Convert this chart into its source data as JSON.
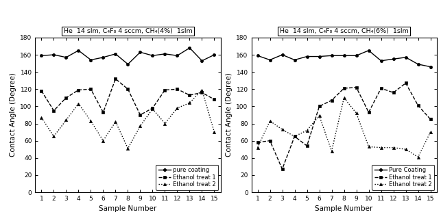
{
  "left": {
    "title": "He  14 slm, C₄F₈ 4 sccm, CH₄(4%)  1slm",
    "pure_coating": [
      159,
      160,
      157,
      165,
      154,
      157,
      161,
      149,
      163,
      159,
      161,
      159,
      168,
      153,
      160
    ],
    "ethanol1": [
      118,
      95,
      110,
      119,
      120,
      93,
      132,
      120,
      90,
      98,
      119,
      120,
      113,
      116,
      108
    ],
    "ethanol2": [
      87,
      65,
      84,
      103,
      83,
      60,
      82,
      51,
      77,
      97,
      80,
      98,
      104,
      119,
      70
    ]
  },
  "right": {
    "title": "He  14 slm, C₄F₈ 4 sccm, CH₄(6%)  1slm",
    "pure_coating": [
      159,
      154,
      160,
      154,
      158,
      158,
      159,
      159,
      159,
      165,
      153,
      155,
      157,
      149,
      146
    ],
    "ethanol1": [
      58,
      60,
      27,
      65,
      54,
      100,
      107,
      121,
      122,
      93,
      121,
      116,
      127,
      101,
      85
    ],
    "ethanol2": [
      52,
      83,
      73,
      65,
      72,
      89,
      48,
      110,
      92,
      53,
      52,
      52,
      50,
      41,
      70
    ]
  },
  "xlabel": "Sample Number",
  "ylabel": "Contact Angle (Degree)",
  "legend_left": [
    "pure coating",
    "Ethanol treat 1",
    "Ethanol treat 2"
  ],
  "legend_right": [
    "Pure Coating",
    "Ethanol treat 1",
    "Ethanol treat 2"
  ],
  "ylim": [
    0,
    180
  ],
  "yticks": [
    0,
    20,
    40,
    60,
    80,
    100,
    120,
    140,
    160,
    180
  ],
  "xticks": [
    1,
    2,
    3,
    4,
    5,
    6,
    7,
    8,
    9,
    10,
    11,
    12,
    13,
    14,
    15
  ]
}
